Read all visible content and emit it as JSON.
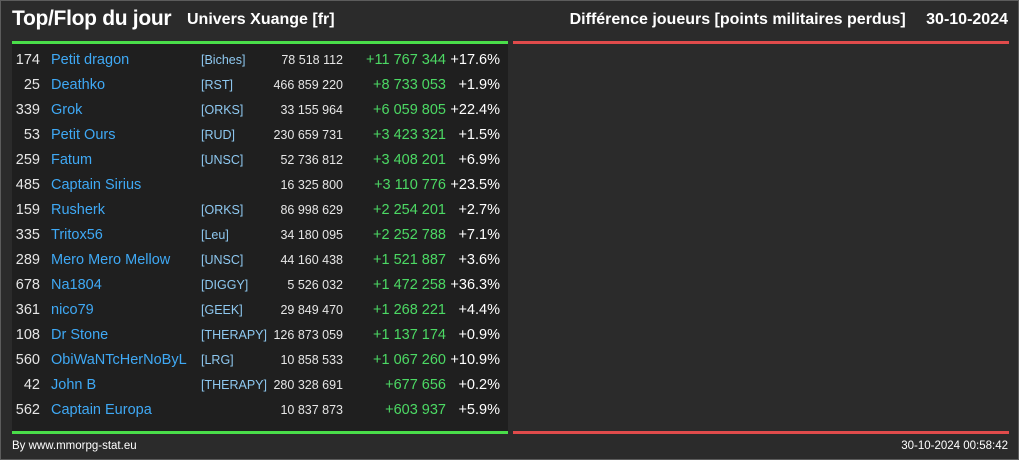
{
  "header": {
    "title": "Top/Flop du jour",
    "universe": "Univers Xuange [fr]",
    "metric": "Différence joueurs [points militaires perdus]",
    "date": "30-10-2024"
  },
  "top": [
    {
      "rank": "174",
      "name": "Petit dragon",
      "alliance": "[Biches]",
      "points": "78 518 112",
      "diff": "+11 767 344",
      "pct": "+17.6%"
    },
    {
      "rank": "25",
      "name": "Deathko",
      "alliance": "[RST]",
      "points": "466 859 220",
      "diff": "+8 733 053",
      "pct": "+1.9%"
    },
    {
      "rank": "339",
      "name": "Grok",
      "alliance": "[ORKS]",
      "points": "33 155 964",
      "diff": "+6 059 805",
      "pct": "+22.4%"
    },
    {
      "rank": "53",
      "name": "Petit Ours",
      "alliance": "[RUD]",
      "points": "230 659 731",
      "diff": "+3 423 321",
      "pct": "+1.5%"
    },
    {
      "rank": "259",
      "name": "Fatum",
      "alliance": "[UNSC]",
      "points": "52 736 812",
      "diff": "+3 408 201",
      "pct": "+6.9%"
    },
    {
      "rank": "485",
      "name": "Captain Sirius",
      "alliance": "",
      "points": "16 325 800",
      "diff": "+3 110 776",
      "pct": "+23.5%"
    },
    {
      "rank": "159",
      "name": "Rusherk",
      "alliance": "[ORKS]",
      "points": "86 998 629",
      "diff": "+2 254 201",
      "pct": "+2.7%"
    },
    {
      "rank": "335",
      "name": "Tritox56",
      "alliance": "[Leu]",
      "points": "34 180 095",
      "diff": "+2 252 788",
      "pct": "+7.1%"
    },
    {
      "rank": "289",
      "name": "Mero Mero Mellow",
      "alliance": "[UNSC]",
      "points": "44 160 438",
      "diff": "+1 521 887",
      "pct": "+3.6%"
    },
    {
      "rank": "678",
      "name": "Na1804",
      "alliance": "[DIGGY]",
      "points": "5 526 032",
      "diff": "+1 472 258",
      "pct": "+36.3%"
    },
    {
      "rank": "361",
      "name": "nico79",
      "alliance": "[GEEK]",
      "points": "29 849 470",
      "diff": "+1 268 221",
      "pct": "+4.4%"
    },
    {
      "rank": "108",
      "name": "Dr Stone",
      "alliance": "[THERAPY]",
      "points": "126 873 059",
      "diff": "+1 137 174",
      "pct": "+0.9%"
    },
    {
      "rank": "560",
      "name": "ObiWaNTcHerNoByL",
      "alliance": "[LRG]",
      "points": "10 858 533",
      "diff": "+1 067 260",
      "pct": "+10.9%"
    },
    {
      "rank": "42",
      "name": "John B",
      "alliance": "[THERAPY]",
      "points": "280 328 691",
      "diff": "+677 656",
      "pct": "+0.2%"
    },
    {
      "rank": "562",
      "name": "Captain Europa",
      "alliance": "",
      "points": "10 837 873",
      "diff": "+603 937",
      "pct": "+5.9%"
    }
  ],
  "footer": {
    "credit": "By www.mmorpg-stat.eu",
    "timestamp": "30-10-2024 00:58:42"
  }
}
